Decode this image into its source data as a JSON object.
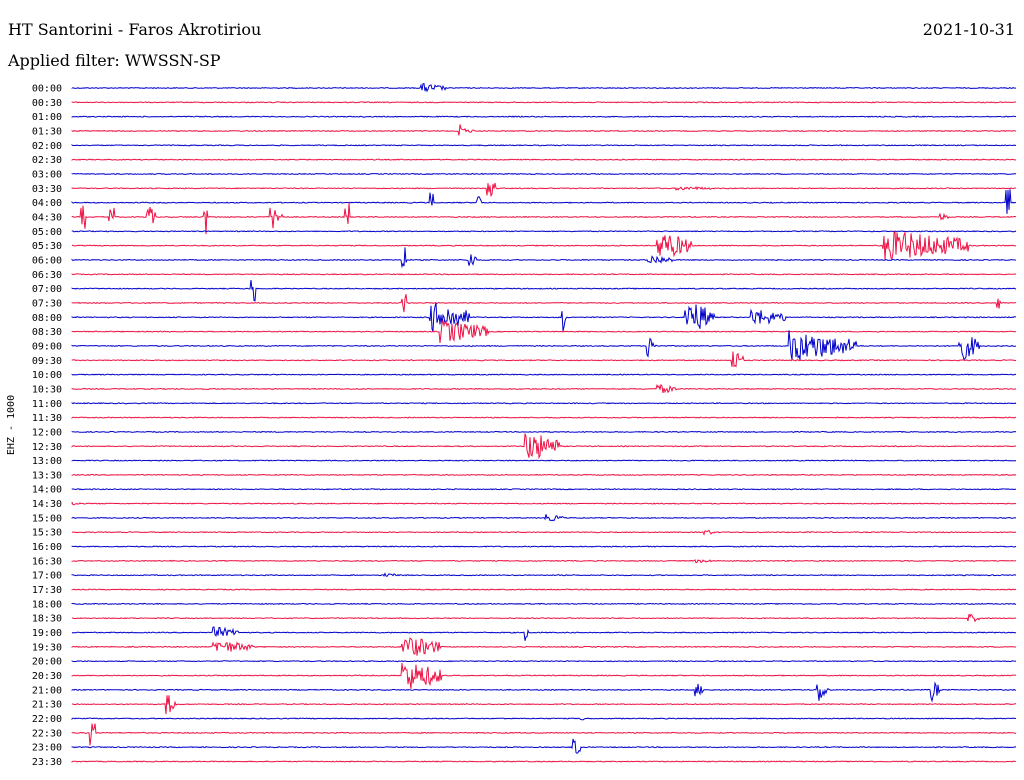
{
  "header": {
    "station": "HT Santorini - Faros Akrotiriou",
    "date": "2021-10-31",
    "filter": "Applied filter: WWSSN-SP"
  },
  "chart_data": {
    "type": "helicorder",
    "channel_label": "EHZ - 1000",
    "colors": {
      "even": "#0000cc",
      "odd": "#ee1144"
    },
    "rows": [
      "00:00",
      "00:30",
      "01:00",
      "01:30",
      "02:00",
      "02:30",
      "03:00",
      "03:30",
      "04:00",
      "04:30",
      "05:00",
      "05:30",
      "06:00",
      "06:30",
      "07:00",
      "07:30",
      "08:00",
      "08:30",
      "09:00",
      "09:30",
      "10:00",
      "10:30",
      "11:00",
      "11:30",
      "12:00",
      "12:30",
      "13:00",
      "13:30",
      "14:00",
      "14:30",
      "15:00",
      "15:30",
      "16:00",
      "16:30",
      "17:00",
      "17:30",
      "18:00",
      "18:30",
      "19:00",
      "19:30",
      "20:00",
      "20:30",
      "21:00",
      "21:30",
      "22:00",
      "22:30",
      "23:00",
      "23:30"
    ],
    "events": [
      {
        "row": 0,
        "t": 0.37,
        "amp": 5,
        "dur": 0.025
      },
      {
        "row": 3,
        "t": 0.41,
        "amp": 14,
        "dur": 0.004
      },
      {
        "row": 3,
        "t": 0.41,
        "amp": 3,
        "dur": 0.015
      },
      {
        "row": 7,
        "t": 0.44,
        "amp": 12,
        "dur": 0.01
      },
      {
        "row": 7,
        "t": 0.64,
        "amp": 2,
        "dur": 0.04
      },
      {
        "row": 8,
        "t": 0.38,
        "amp": 10,
        "dur": 0.003
      },
      {
        "row": 8,
        "t": 0.43,
        "amp": 8,
        "dur": 0.003
      },
      {
        "row": 8,
        "t": 0.99,
        "amp": 14,
        "dur": 0.003
      },
      {
        "row": 9,
        "t": 0.01,
        "amp": 12,
        "dur": 0.003
      },
      {
        "row": 9,
        "t": 0.04,
        "amp": 10,
        "dur": 0.004
      },
      {
        "row": 9,
        "t": 0.08,
        "amp": 14,
        "dur": 0.007
      },
      {
        "row": 9,
        "t": 0.14,
        "amp": 18,
        "dur": 0.003
      },
      {
        "row": 9,
        "t": 0.21,
        "amp": 14,
        "dur": 0.012
      },
      {
        "row": 9,
        "t": 0.29,
        "amp": 16,
        "dur": 0.003
      },
      {
        "row": 9,
        "t": 0.92,
        "amp": 4,
        "dur": 0.008
      },
      {
        "row": 11,
        "t": 0.62,
        "amp": 15,
        "dur": 0.035
      },
      {
        "row": 11,
        "t": 0.86,
        "amp": 16,
        "dur": 0.09
      },
      {
        "row": 12,
        "t": 0.35,
        "amp": 14,
        "dur": 0.003
      },
      {
        "row": 12,
        "t": 0.42,
        "amp": 10,
        "dur": 0.008
      },
      {
        "row": 12,
        "t": 0.61,
        "amp": 5,
        "dur": 0.025
      },
      {
        "row": 14,
        "t": 0.19,
        "amp": 14,
        "dur": 0.003
      },
      {
        "row": 15,
        "t": 0.35,
        "amp": 12,
        "dur": 0.003
      },
      {
        "row": 15,
        "t": 0.98,
        "amp": 12,
        "dur": 0.003
      },
      {
        "row": 16,
        "t": 0.38,
        "amp": 16,
        "dur": 0.04
      },
      {
        "row": 16,
        "t": 0.52,
        "amp": 14,
        "dur": 0.003
      },
      {
        "row": 16,
        "t": 0.65,
        "amp": 18,
        "dur": 0.03
      },
      {
        "row": 16,
        "t": 0.72,
        "amp": 9,
        "dur": 0.035
      },
      {
        "row": 17,
        "t": 0.39,
        "amp": 12,
        "dur": 0.05
      },
      {
        "row": 18,
        "t": 0.61,
        "amp": 12,
        "dur": 0.008
      },
      {
        "row": 18,
        "t": 0.76,
        "amp": 16,
        "dur": 0.07
      },
      {
        "row": 18,
        "t": 0.94,
        "amp": 16,
        "dur": 0.02
      },
      {
        "row": 19,
        "t": 0.7,
        "amp": 12,
        "dur": 0.01
      },
      {
        "row": 21,
        "t": 0.62,
        "amp": 5,
        "dur": 0.02
      },
      {
        "row": 25,
        "t": 0.48,
        "amp": 16,
        "dur": 0.035
      },
      {
        "row": 29,
        "t": 0.0,
        "amp": 2,
        "dur": 0.01
      },
      {
        "row": 30,
        "t": 0.5,
        "amp": 4,
        "dur": 0.02
      },
      {
        "row": 31,
        "t": 0.67,
        "amp": 3,
        "dur": 0.01
      },
      {
        "row": 33,
        "t": 0.66,
        "amp": 2,
        "dur": 0.02
      },
      {
        "row": 34,
        "t": 0.33,
        "amp": 2,
        "dur": 0.02
      },
      {
        "row": 37,
        "t": 0.95,
        "amp": 5,
        "dur": 0.01
      },
      {
        "row": 38,
        "t": 0.15,
        "amp": 6,
        "dur": 0.025
      },
      {
        "row": 38,
        "t": 0.48,
        "amp": 10,
        "dur": 0.003
      },
      {
        "row": 39,
        "t": 0.15,
        "amp": 7,
        "dur": 0.04
      },
      {
        "row": 39,
        "t": 0.35,
        "amp": 12,
        "dur": 0.04
      },
      {
        "row": 41,
        "t": 0.35,
        "amp": 16,
        "dur": 0.04
      },
      {
        "row": 42,
        "t": 0.66,
        "amp": 8,
        "dur": 0.008
      },
      {
        "row": 42,
        "t": 0.79,
        "amp": 14,
        "dur": 0.01
      },
      {
        "row": 42,
        "t": 0.91,
        "amp": 12,
        "dur": 0.008
      },
      {
        "row": 43,
        "t": 0.1,
        "amp": 12,
        "dur": 0.01
      },
      {
        "row": 44,
        "t": 0.54,
        "amp": 4,
        "dur": 0.003
      },
      {
        "row": 45,
        "t": 0.02,
        "amp": 16,
        "dur": 0.004
      },
      {
        "row": 46,
        "t": 0.53,
        "amp": 12,
        "dur": 0.008
      }
    ]
  }
}
